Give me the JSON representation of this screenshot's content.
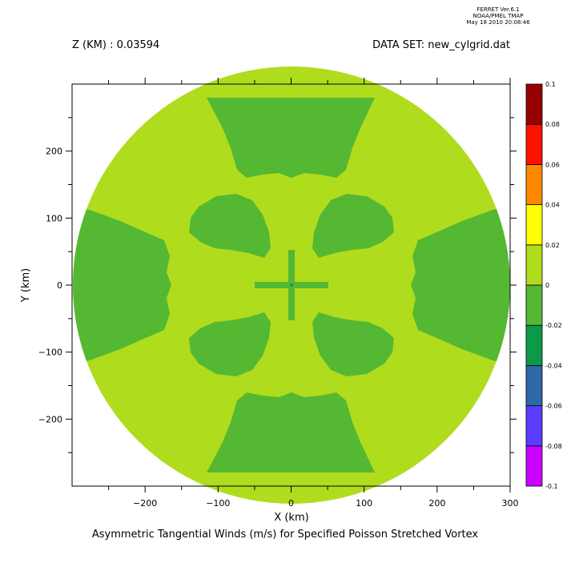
{
  "header": {
    "ferret_lines": [
      "FERRET  Ver.6.1",
      "NOAA/PMEL TMAP",
      "May 18 2010 20:08:46"
    ],
    "z_label": "Z (KM) : 0.03594",
    "dataset_label": "DATA SET: new_cylgrid.dat"
  },
  "chart_data": {
    "type": "heatmap",
    "title": "Asymmetric Tangential Winds (m/s) for Specified Poisson Stretched Vortex",
    "xlabel": "X (km)",
    "ylabel": "Y (km)",
    "xlim": [
      -300,
      300
    ],
    "ylim": [
      -300,
      300
    ],
    "x_ticks": [
      -200,
      -100,
      0,
      100,
      200,
      300
    ],
    "y_ticks": [
      -200,
      -100,
      0,
      100,
      200
    ],
    "domain_radius_km": 300,
    "colorbar": {
      "levels": [
        -0.1,
        -0.08,
        -0.06,
        -0.04,
        -0.02,
        0,
        0.02,
        0.04,
        0.06,
        0.08,
        0.1
      ],
      "level_labels": [
        "-0.1",
        "-0.08",
        "-0.06",
        "-0.04",
        "-0.02",
        "0",
        "0.02",
        "0.04",
        "0.06",
        "0.08",
        "0.1"
      ],
      "colors": [
        "#cc00ff",
        "#5a3cff",
        "#2e68a6",
        "#0a9a48",
        "#55b832",
        "#b0dc1e",
        "#ffff00",
        "#ff8800",
        "#ff1100",
        "#990000"
      ]
    },
    "regions": [
      {
        "value_range": [
          0,
          0.02
        ],
        "description_color": "#b0dc1e",
        "role": "background_disk"
      },
      {
        "value_range": [
          -0.02,
          0
        ],
        "description_color": "#55b832",
        "role": "negative_lobes"
      }
    ],
    "grid": false
  }
}
